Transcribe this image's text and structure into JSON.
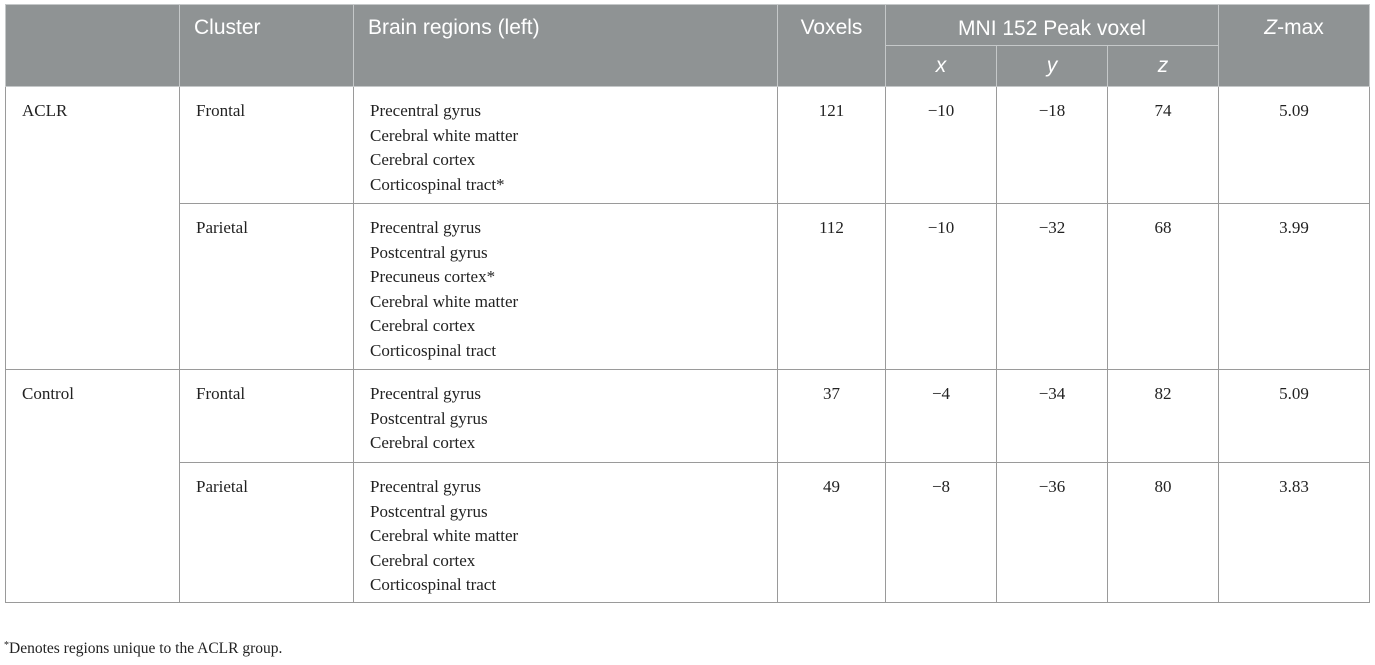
{
  "table": {
    "headers": {
      "group": "",
      "cluster": "Cluster",
      "regions": "Brain regions (left)",
      "voxels": "Voxels",
      "mni_line1": "MNI 152",
      "mni_line2": "Peak voxel",
      "x": "x",
      "y": "y",
      "z": "z",
      "zmax_var": "Z",
      "zmax_rest": "-max"
    },
    "groups": [
      {
        "name": "ACLR",
        "rows": [
          {
            "cluster": "Frontal",
            "regions": [
              "Precentral gyrus",
              "Cerebral white matter",
              "Cerebral cortex",
              "Corticospinal tract*"
            ],
            "voxels": "121",
            "x": "−10",
            "y": "−18",
            "z": "74",
            "zmax": "5.09"
          },
          {
            "cluster": "Parietal",
            "regions": [
              "Precentral gyrus",
              "Postcentral gyrus",
              "Precuneus cortex*",
              "Cerebral white matter",
              "Cerebral cortex",
              "Corticospinal tract"
            ],
            "voxels": "112",
            "x": "−10",
            "y": "−32",
            "z": "68",
            "zmax": "3.99"
          }
        ]
      },
      {
        "name": "Control",
        "rows": [
          {
            "cluster": "Frontal",
            "regions": [
              "Precentral gyrus",
              "Postcentral gyrus",
              "Cerebral cortex"
            ],
            "voxels": "37",
            "x": "−4",
            "y": "−34",
            "z": "82",
            "zmax": "5.09"
          },
          {
            "cluster": "Parietal",
            "regions": [
              "Precentral gyrus",
              "Postcentral gyrus",
              "Cerebral white matter",
              "Cerebral cortex",
              "Corticospinal tract"
            ],
            "voxels": "49",
            "x": "−8",
            "y": "−36",
            "z": "80",
            "zmax": "3.83"
          }
        ]
      }
    ]
  },
  "footnote": {
    "marker": "*",
    "text": "Denotes regions unique to the ACLR group."
  }
}
